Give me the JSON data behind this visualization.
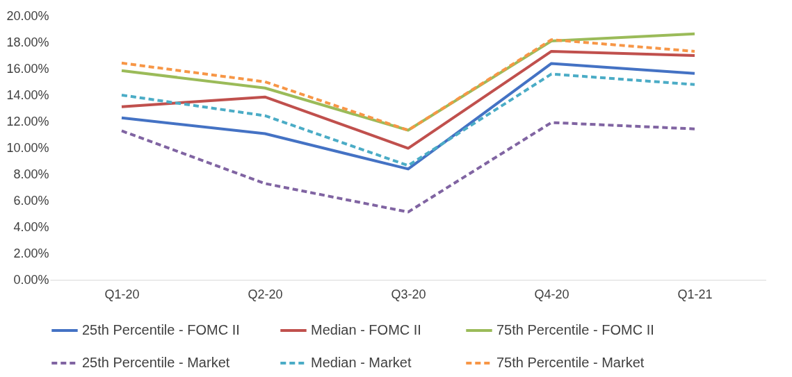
{
  "chart_data": {
    "type": "line",
    "categories": [
      "Q1-20",
      "Q2-20",
      "Q3-20",
      "Q4-20",
      "Q1-21"
    ],
    "ylim": [
      0,
      20
    ],
    "yticks": [
      {
        "value": 0,
        "label": "0.00%"
      },
      {
        "value": 2,
        "label": "2.00%"
      },
      {
        "value": 4,
        "label": "4.00%"
      },
      {
        "value": 6,
        "label": "6.00%"
      },
      {
        "value": 8,
        "label": "8.00%"
      },
      {
        "value": 10,
        "label": "10.00%"
      },
      {
        "value": 12,
        "label": "12.00%"
      },
      {
        "value": 14,
        "label": "14.00%"
      },
      {
        "value": 16,
        "label": "16.00%"
      },
      {
        "value": 18,
        "label": "18.00%"
      },
      {
        "value": 20,
        "label": "20.00%"
      }
    ],
    "grid": false,
    "legend": "bottom",
    "marker": "none",
    "series": [
      {
        "name": "25th Percentile - FOMC II",
        "color": "#4472c4",
        "line_style": "solid",
        "values": [
          12.28,
          11.08,
          8.4,
          16.4,
          15.64
        ]
      },
      {
        "name": "Median -  FOMC II",
        "color": "#c0504d",
        "line_style": "solid",
        "values": [
          13.12,
          13.86,
          9.97,
          17.32,
          17.0
        ]
      },
      {
        "name": "75th Percentile - FOMC II",
        "color": "#9bbb59",
        "line_style": "solid",
        "values": [
          15.85,
          14.54,
          11.34,
          18.1,
          18.64
        ]
      },
      {
        "name": "25th Percentile - Market",
        "color": "#8064a2",
        "line_style": "dashed",
        "values": [
          11.29,
          7.3,
          5.14,
          11.92,
          11.44
        ]
      },
      {
        "name": "Median - Market",
        "color": "#4bacc6",
        "line_style": "dashed",
        "values": [
          14.0,
          12.44,
          8.66,
          15.6,
          14.8
        ]
      },
      {
        "name": "75th Percentile - Market",
        "color": "#f79646",
        "line_style": "dashed",
        "values": [
          16.43,
          15.01,
          11.34,
          18.2,
          17.32
        ]
      }
    ]
  }
}
